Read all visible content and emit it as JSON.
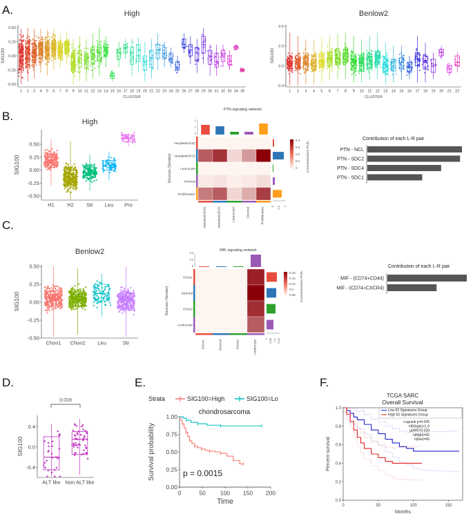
{
  "panels": {
    "a": "A.",
    "b": "B.",
    "c": "C.",
    "d": "D.",
    "e": "E.",
    "f": "F."
  },
  "chart_data": [
    {
      "id": "A-high",
      "type": "box-jitter",
      "title": "High",
      "xlabel": "CLUSTER",
      "ylabel": "SIG100",
      "ylim": [
        -0.55,
        0.55
      ],
      "yticks": [
        -0.5,
        -0.25,
        0.0,
        0.25,
        0.5
      ],
      "categories": [
        "1",
        "2",
        "3",
        "4",
        "5",
        "6",
        "7",
        "8",
        "9",
        "10",
        "11",
        "12",
        "13",
        "14",
        "15",
        "16",
        "17",
        "18",
        "19",
        "20",
        "21",
        "22",
        "23",
        "24",
        "25",
        "26",
        "27",
        "28",
        "29",
        "30",
        "31",
        "32",
        "33",
        "34",
        "35"
      ],
      "boxes": [
        {
          "median": 0.0,
          "q1": -0.2,
          "q3": 0.2,
          "lo": -0.5,
          "hi": 0.48
        },
        {
          "median": 0.05,
          "q1": -0.15,
          "q3": 0.22,
          "lo": -0.45,
          "hi": 0.5
        },
        {
          "median": 0.05,
          "q1": -0.12,
          "q3": 0.22,
          "lo": -0.4,
          "hi": 0.48
        },
        {
          "median": 0.12,
          "q1": -0.05,
          "q3": 0.25,
          "lo": -0.3,
          "hi": 0.48
        },
        {
          "median": 0.1,
          "q1": -0.05,
          "q3": 0.25,
          "lo": -0.35,
          "hi": 0.45
        },
        {
          "median": 0.15,
          "q1": 0.0,
          "q3": 0.27,
          "lo": -0.25,
          "hi": 0.48
        },
        {
          "median": 0.1,
          "q1": 0.0,
          "q3": 0.22,
          "lo": -0.2,
          "hi": 0.4
        },
        {
          "median": 0.15,
          "q1": 0.05,
          "q3": 0.25,
          "lo": -0.15,
          "hi": 0.42
        },
        {
          "median": -0.1,
          "q1": -0.25,
          "q3": 0.05,
          "lo": -0.5,
          "hi": 0.3
        },
        {
          "median": -0.05,
          "q1": -0.2,
          "q3": 0.1,
          "lo": -0.45,
          "hi": 0.35
        },
        {
          "median": -0.1,
          "q1": -0.22,
          "q3": 0.05,
          "lo": -0.45,
          "hi": 0.3
        },
        {
          "median": 0.0,
          "q1": -0.15,
          "q3": 0.15,
          "lo": -0.4,
          "hi": 0.4
        },
        {
          "median": 0.05,
          "q1": -0.1,
          "q3": 0.2,
          "lo": -0.35,
          "hi": 0.5
        },
        {
          "median": 0.1,
          "q1": 0.0,
          "q3": 0.2,
          "lo": -0.2,
          "hi": 0.35
        },
        {
          "median": -0.35,
          "q1": -0.4,
          "q3": -0.3,
          "lo": -0.45,
          "hi": -0.25
        },
        {
          "median": 0.05,
          "q1": -0.05,
          "q3": 0.12,
          "lo": -0.2,
          "hi": 0.25
        },
        {
          "median": 0.15,
          "q1": 0.05,
          "q3": 0.2,
          "lo": -0.05,
          "hi": 0.3
        },
        {
          "median": 0.05,
          "q1": -0.15,
          "q3": 0.15,
          "lo": -0.35,
          "hi": 0.3
        },
        {
          "median": 0.0,
          "q1": -0.1,
          "q3": 0.2,
          "lo": -0.3,
          "hi": 0.32
        },
        {
          "median": -0.1,
          "q1": -0.25,
          "q3": 0.0,
          "lo": -0.45,
          "hi": 0.25
        },
        {
          "median": -0.05,
          "q1": -0.2,
          "q3": 0.1,
          "lo": -0.4,
          "hi": 0.3
        },
        {
          "median": 0.1,
          "q1": -0.05,
          "q3": 0.2,
          "lo": -0.25,
          "hi": 0.4
        },
        {
          "median": 0.05,
          "q1": -0.05,
          "q3": 0.15,
          "lo": -0.2,
          "hi": 0.25
        },
        {
          "median": -0.05,
          "q1": -0.1,
          "q3": 0.05,
          "lo": -0.2,
          "hi": 0.15
        },
        {
          "median": -0.2,
          "q1": -0.25,
          "q3": -0.1,
          "lo": -0.3,
          "hi": 0.0
        },
        {
          "median": 0.2,
          "q1": 0.15,
          "q3": 0.3,
          "lo": 0.05,
          "hi": 0.4
        },
        {
          "median": 0.1,
          "q1": 0.0,
          "q3": 0.2,
          "lo": -0.15,
          "hi": 0.35
        },
        {
          "median": 0.05,
          "q1": -0.1,
          "q3": 0.15,
          "lo": -0.3,
          "hi": 0.3
        },
        {
          "median": 0.2,
          "q1": 0.05,
          "q3": 0.35,
          "lo": -0.15,
          "hi": 0.5
        },
        {
          "median": 0.0,
          "q1": -0.15,
          "q3": 0.1,
          "lo": -0.35,
          "hi": 0.2
        },
        {
          "median": -0.1,
          "q1": -0.2,
          "q3": 0.05,
          "lo": -0.35,
          "hi": 0.2
        },
        {
          "median": 0.0,
          "q1": -0.1,
          "q3": 0.1,
          "lo": -0.2,
          "hi": 0.2
        },
        {
          "median": -0.1,
          "q1": -0.15,
          "q3": 0.0,
          "lo": -0.25,
          "hi": 0.1
        },
        {
          "median": 0.15,
          "q1": 0.12,
          "q3": 0.18,
          "lo": 0.1,
          "hi": 0.2
        },
        {
          "median": -0.25,
          "q1": -0.27,
          "q3": -0.23,
          "lo": -0.3,
          "hi": -0.2
        }
      ]
    },
    {
      "id": "A-benlow2",
      "type": "box-jitter",
      "title": "Benlow2",
      "xlabel": "CLUSTER",
      "ylabel": "SIG100",
      "ylim": [
        -0.32,
        0.62
      ],
      "yticks": [
        -0.3,
        0.0,
        0.3,
        0.6
      ],
      "categories": [
        "1",
        "2",
        "3",
        "4",
        "5",
        "6",
        "7",
        "8",
        "9",
        "10",
        "11",
        "12",
        "13",
        "14",
        "15",
        "16",
        "17",
        "18",
        "19",
        "20",
        "21",
        "22"
      ],
      "boxes": [
        {
          "median": 0.05,
          "q1": -0.05,
          "q3": 0.15,
          "lo": -0.3,
          "hi": 0.5
        },
        {
          "median": 0.05,
          "q1": -0.05,
          "q3": 0.15,
          "lo": -0.3,
          "hi": 0.45
        },
        {
          "median": 0.05,
          "q1": -0.05,
          "q3": 0.15,
          "lo": -0.28,
          "hi": 0.4
        },
        {
          "median": 0.05,
          "q1": -0.05,
          "q3": 0.15,
          "lo": -0.28,
          "hi": 0.4
        },
        {
          "median": 0.08,
          "q1": -0.02,
          "q3": 0.18,
          "lo": -0.25,
          "hi": 0.42
        },
        {
          "median": 0.1,
          "q1": 0.0,
          "q3": 0.2,
          "lo": -0.22,
          "hi": 0.45
        },
        {
          "median": 0.12,
          "q1": 0.02,
          "q3": 0.22,
          "lo": -0.2,
          "hi": 0.48
        },
        {
          "median": 0.15,
          "q1": 0.05,
          "q3": 0.25,
          "lo": -0.2,
          "hi": 0.5
        },
        {
          "median": 0.05,
          "q1": -0.05,
          "q3": 0.15,
          "lo": -0.25,
          "hi": 0.45
        },
        {
          "median": 0.05,
          "q1": -0.05,
          "q3": 0.15,
          "lo": -0.25,
          "hi": 0.4
        },
        {
          "median": 0.08,
          "q1": -0.02,
          "q3": 0.18,
          "lo": -0.22,
          "hi": 0.45
        },
        {
          "median": 0.12,
          "q1": 0.02,
          "q3": 0.22,
          "lo": -0.2,
          "hi": 0.5
        },
        {
          "median": 0.02,
          "q1": -0.08,
          "q3": 0.12,
          "lo": -0.28,
          "hi": 0.35
        },
        {
          "median": 0.0,
          "q1": -0.08,
          "q3": 0.1,
          "lo": -0.25,
          "hi": 0.3
        },
        {
          "median": 0.05,
          "q1": -0.05,
          "q3": 0.12,
          "lo": -0.22,
          "hi": 0.3
        },
        {
          "median": -0.02,
          "q1": -0.1,
          "q3": 0.05,
          "lo": -0.2,
          "hi": 0.15
        },
        {
          "median": 0.1,
          "q1": 0.0,
          "q3": 0.2,
          "lo": -0.25,
          "hi": 0.45
        },
        {
          "median": 0.05,
          "q1": -0.05,
          "q3": 0.15,
          "lo": -0.25,
          "hi": 0.35
        },
        {
          "median": 0.0,
          "q1": -0.1,
          "q3": 0.1,
          "lo": -0.2,
          "hi": 0.2
        },
        {
          "median": 0.2,
          "q1": 0.15,
          "q3": 0.25,
          "lo": 0.1,
          "hi": 0.3
        },
        {
          "median": -0.05,
          "q1": -0.1,
          "q3": 0.0,
          "lo": -0.15,
          "hi": 0.05
        },
        {
          "median": 0.05,
          "q1": 0.0,
          "q3": 0.15,
          "lo": -0.1,
          "hi": 0.2
        }
      ]
    },
    {
      "id": "B-high",
      "type": "box-jitter",
      "title": "High",
      "ylabel": "SIG100",
      "ylim": [
        -0.58,
        0.78
      ],
      "yticks": [
        -0.5,
        -0.25,
        0.0,
        0.25,
        0.5
      ],
      "categories": [
        "H1",
        "H2",
        "Str",
        "Leu",
        "Pro"
      ],
      "colors": [
        "#F8766D",
        "#A3A500",
        "#00BF7D",
        "#00B0F6",
        "#E76BF3"
      ],
      "boxes": [
        {
          "median": 0.2,
          "q1": 0.05,
          "q3": 0.3,
          "lo": -0.3,
          "hi": 0.6
        },
        {
          "median": -0.15,
          "q1": -0.3,
          "q3": 0.0,
          "lo": -0.58,
          "hi": 0.55
        },
        {
          "median": -0.05,
          "q1": -0.15,
          "q3": 0.05,
          "lo": -0.4,
          "hi": 0.3
        },
        {
          "median": 0.1,
          "q1": 0.0,
          "q3": 0.18,
          "lo": -0.2,
          "hi": 0.35
        },
        {
          "median": 0.62,
          "q1": 0.55,
          "q3": 0.68,
          "lo": 0.45,
          "hi": 0.72
        }
      ]
    },
    {
      "id": "B-ptn",
      "type": "heatmap",
      "title": "PTN signaling network",
      "ylabel": "Sources (Sender)",
      "rows": [
        "neoplastic(H2)",
        "neoplastic(H1)",
        "Leucocyte",
        "Stromal",
        "Proliferative"
      ],
      "cols": [
        "neoplastic(H2)",
        "neoplastic(H1)",
        "Leucocyte",
        "Stromal",
        "Proliferative"
      ],
      "colorbar_title": "Communication Prob.",
      "colorbar_ticks": [
        "0.4",
        "0.3",
        "0.2",
        "0.1",
        "0"
      ],
      "top_bar_ticks": [
        "2",
        "1",
        "0"
      ],
      "right_bar_ticks": [
        "0",
        "0.5",
        "1"
      ],
      "values": [
        [
          0.0,
          0.0,
          0.0,
          0.0,
          0.0
        ],
        [
          0.25,
          0.32,
          0.05,
          0.15,
          0.4
        ],
        [
          0.0,
          0.0,
          0.0,
          0.0,
          0.0
        ],
        [
          0.02,
          0.03,
          0.01,
          0.02,
          0.04
        ],
        [
          0.2,
          0.25,
          0.05,
          0.12,
          0.3
        ]
      ]
    },
    {
      "id": "B-contrib",
      "type": "bar",
      "orientation": "horizontal",
      "title": "Contribution of each L-R pair",
      "categories": [
        "PTN - NCL",
        "PTN - SDC2",
        "PTN - SDC4",
        "PTN - SDC1"
      ],
      "values": [
        1.0,
        0.98,
        0.78,
        0.58
      ]
    },
    {
      "id": "C-benlow2",
      "type": "box-jitter",
      "title": "Benlow2",
      "ylabel": "SIG100",
      "ylim": [
        -0.5,
        0.52
      ],
      "yticks": [
        -0.5,
        -0.25,
        0.0,
        0.25,
        0.5
      ],
      "categories": [
        "Chon1",
        "Chon2",
        "Leu",
        "Str"
      ],
      "colors": [
        "#F8766D",
        "#7CAE00",
        "#00BFC4",
        "#C77CFF"
      ],
      "boxes": [
        {
          "median": 0.05,
          "q1": -0.05,
          "q3": 0.15,
          "lo": -0.48,
          "hi": 0.5
        },
        {
          "median": 0.05,
          "q1": -0.05,
          "q3": 0.15,
          "lo": -0.45,
          "hi": 0.48
        },
        {
          "median": 0.12,
          "q1": 0.02,
          "q3": 0.25,
          "lo": -0.2,
          "hi": 0.4
        },
        {
          "median": 0.02,
          "q1": -0.08,
          "q3": 0.12,
          "lo": -0.48,
          "hi": 0.5
        }
      ]
    },
    {
      "id": "C-mif",
      "type": "heatmap",
      "title": "MIF signaling network",
      "ylabel": "Sources (Sender)",
      "rows": [
        "Chon1",
        "Stromal",
        "Chon2",
        "Leukocyte"
      ],
      "cols": [
        "Chon1",
        "Stromal",
        "Chon2",
        "Leukocyte"
      ],
      "colorbar_title": "Communication Prob.",
      "colorbar_ticks": [
        "0.16",
        "0.14",
        "0.12",
        "0.1",
        "0.08"
      ],
      "top_bar_ticks": [
        "0.4",
        "0.2",
        "0"
      ],
      "right_bar_ticks": [
        "0",
        "0.05",
        "0.1",
        "0.15"
      ],
      "values": [
        [
          0.0,
          0.0,
          0.0,
          0.14
        ],
        [
          0.0,
          0.0,
          0.0,
          0.16
        ],
        [
          0.0,
          0.0,
          0.0,
          0.13
        ],
        [
          0.0,
          0.0,
          0.0,
          0.1
        ]
      ]
    },
    {
      "id": "C-contrib",
      "type": "bar",
      "orientation": "horizontal",
      "title": "Contribution of each L-R pair",
      "categories": [
        "MIF - (CD74+CD44)",
        "MIF - (CD74+CXCR4)"
      ],
      "values": [
        1.0,
        0.62
      ]
    },
    {
      "id": "D",
      "type": "box-jitter",
      "ylabel": "SIG100",
      "ylim": [
        -0.6,
        0.62
      ],
      "yticks": [
        -0.4,
        0.0,
        0.4
      ],
      "categories": [
        "ALT like",
        "Non ALT like"
      ],
      "pvalue": "0.019",
      "boxes": [
        {
          "median": -0.2,
          "q1": -0.45,
          "q3": 0.2,
          "lo": -0.58,
          "hi": 0.45
        },
        {
          "median": 0.15,
          "q1": -0.15,
          "q3": 0.3,
          "lo": -0.55,
          "hi": 0.55
        }
      ]
    },
    {
      "id": "E",
      "type": "line",
      "title": "chondrosarcoma",
      "xlabel": "Time",
      "ylabel": "Survival probability",
      "xlim": [
        0,
        200
      ],
      "ylim": [
        0,
        1
      ],
      "xticks": [
        0,
        50,
        100,
        150,
        200
      ],
      "yticks": [
        "0.00",
        "0.25",
        "0.50",
        "0.75",
        "1.00"
      ],
      "legend_title": "Strata",
      "pvalue_text": "p = 0.0015",
      "series": [
        {
          "name": "SIG100=High",
          "color": "#F8766D",
          "x": [
            0,
            3,
            6,
            10,
            14,
            18,
            22,
            27,
            33,
            40,
            48,
            57,
            66,
            78,
            90,
            104,
            118,
            132,
            140
          ],
          "y": [
            1.0,
            0.95,
            0.9,
            0.84,
            0.78,
            0.72,
            0.66,
            0.62,
            0.58,
            0.56,
            0.54,
            0.52,
            0.51,
            0.5,
            0.48,
            0.44,
            0.38,
            0.33,
            0.33
          ]
        },
        {
          "name": "SIG100=Lo",
          "color": "#00BFC4",
          "x": [
            0,
            8,
            15,
            25,
            40,
            60,
            90,
            130,
            180
          ],
          "y": [
            1.0,
            0.98,
            0.95,
            0.92,
            0.9,
            0.88,
            0.87,
            0.87,
            0.87
          ]
        }
      ]
    },
    {
      "id": "F",
      "type": "line",
      "title": "TCGA SARC",
      "subtitle": "Overall Survival",
      "xlabel": "Months",
      "ylabel": "Percent survival",
      "xlim": [
        0,
        170
      ],
      "ylim": [
        0,
        1
      ],
      "xticks": [
        0,
        50,
        100,
        150
      ],
      "yticks": [
        "0.0",
        "0.2",
        "0.4",
        "0.6",
        "0.8",
        "1.0"
      ],
      "legend": [
        "Low 82 Signatures Group",
        "High 82 Signatures Group"
      ],
      "stats": [
        "Logrank p=0.026",
        "HR(high)=1.9",
        "p(HR)=0.029",
        "n(high)=66",
        "n(low)=66"
      ],
      "series": [
        {
          "name": "Low 82 Signatures Group",
          "color": "#2020d0",
          "x": [
            0,
            5,
            10,
            15,
            20,
            30,
            40,
            50,
            60,
            70,
            80,
            90,
            100,
            110,
            120,
            165
          ],
          "y": [
            1.0,
            0.97,
            0.94,
            0.9,
            0.87,
            0.82,
            0.76,
            0.72,
            0.66,
            0.62,
            0.58,
            0.56,
            0.53,
            0.53,
            0.53,
            0.53
          ]
        },
        {
          "name": "High 82 Signatures Group",
          "color": "#e02020",
          "x": [
            0,
            5,
            10,
            15,
            20,
            25,
            30,
            40,
            50,
            60,
            70,
            80,
            112
          ],
          "y": [
            1.0,
            0.93,
            0.85,
            0.76,
            0.68,
            0.62,
            0.56,
            0.5,
            0.46,
            0.42,
            0.4,
            0.4,
            0.4
          ]
        }
      ]
    }
  ]
}
